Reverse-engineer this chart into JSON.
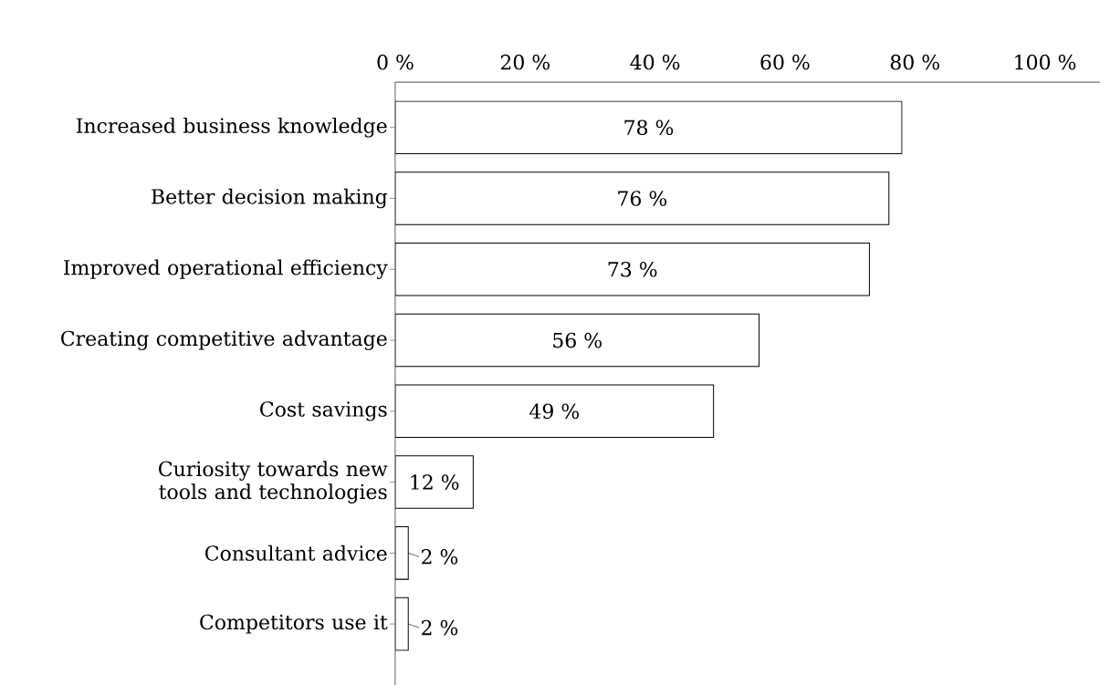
{
  "chart_data": {
    "type": "bar",
    "orientation": "horizontal",
    "categories": [
      "Increased business knowledge",
      "Better decision making",
      "Improved operational efficiency",
      "Creating competitive advantage",
      "Cost savings",
      "Curiosity towards new tools and technologies",
      "Consultant advice",
      "Competitors use it"
    ],
    "values": [
      78,
      76,
      73,
      56,
      49,
      12,
      2,
      2
    ],
    "value_labels": [
      "78 %",
      "76 %",
      "73 %",
      "56 %",
      "49 %",
      "12 %",
      "2 %",
      "2 %"
    ],
    "color": "#ffffff",
    "xlim": [
      0,
      108.5
    ],
    "xticks": [
      {
        "value": 0,
        "label": "0 %"
      },
      {
        "value": 20,
        "label": "20 %"
      },
      {
        "value": 40,
        "label": "40 %"
      },
      {
        "value": 60,
        "label": "60 %"
      },
      {
        "value": 80,
        "label": "80 %"
      },
      {
        "value": 100,
        "label": "100 %"
      }
    ]
  }
}
